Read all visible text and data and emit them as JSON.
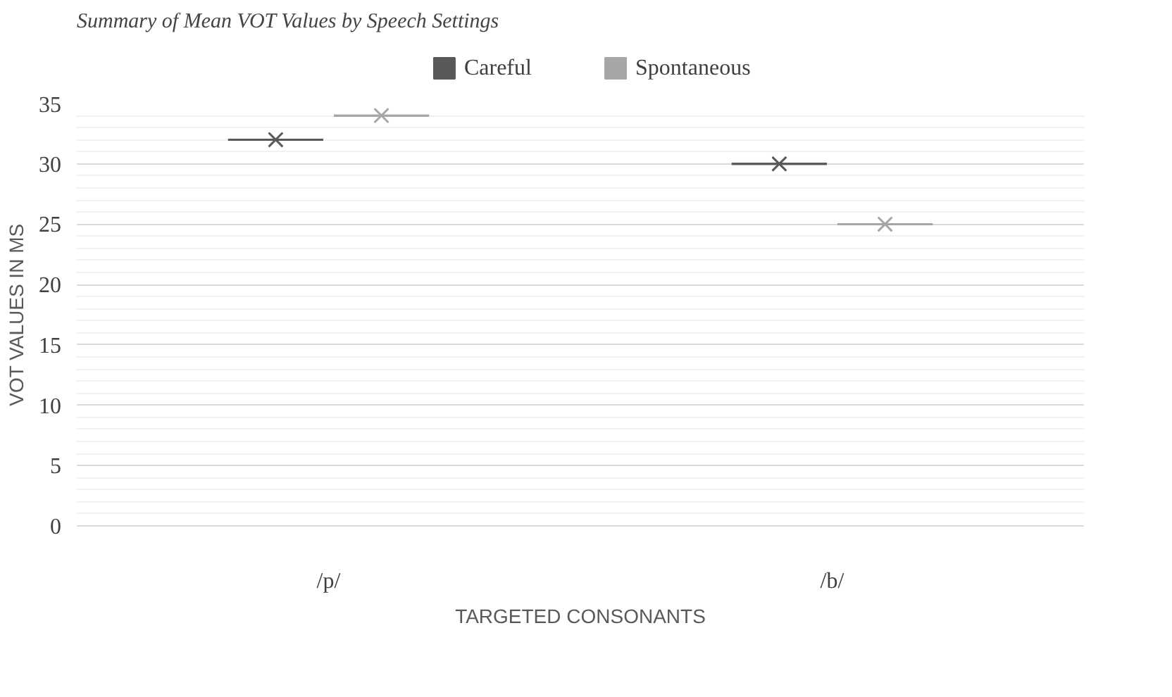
{
  "chart_data": {
    "type": "box",
    "title": "Summary of Mean VOT Values by Speech Settings",
    "xlabel": "TARGETED CONSONANTS",
    "ylabel": "VOT VALUES IN MS",
    "categories": [
      "/p/",
      "/b/"
    ],
    "series": [
      {
        "name": "Careful",
        "color": "#595959",
        "boxes": [
          {
            "low": 32,
            "q1": 32,
            "median": 32,
            "q3": 32,
            "high": 32,
            "mean": 32
          },
          {
            "low": 30,
            "q1": 30,
            "median": 30,
            "q3": 30,
            "high": 30,
            "mean": 30
          }
        ]
      },
      {
        "name": "Spontaneous",
        "color": "#a6a6a6",
        "boxes": [
          {
            "low": 34,
            "q1": 34,
            "median": 34,
            "q3": 34,
            "high": 34,
            "mean": 34
          },
          {
            "low": 25,
            "q1": 25,
            "median": 25,
            "q3": 25,
            "high": 25,
            "mean": 25
          }
        ]
      }
    ],
    "ylim": [
      0,
      35
    ],
    "yticks": [
      0,
      5,
      10,
      15,
      20,
      25,
      30,
      35
    ],
    "grid": "y",
    "legend": "top"
  }
}
